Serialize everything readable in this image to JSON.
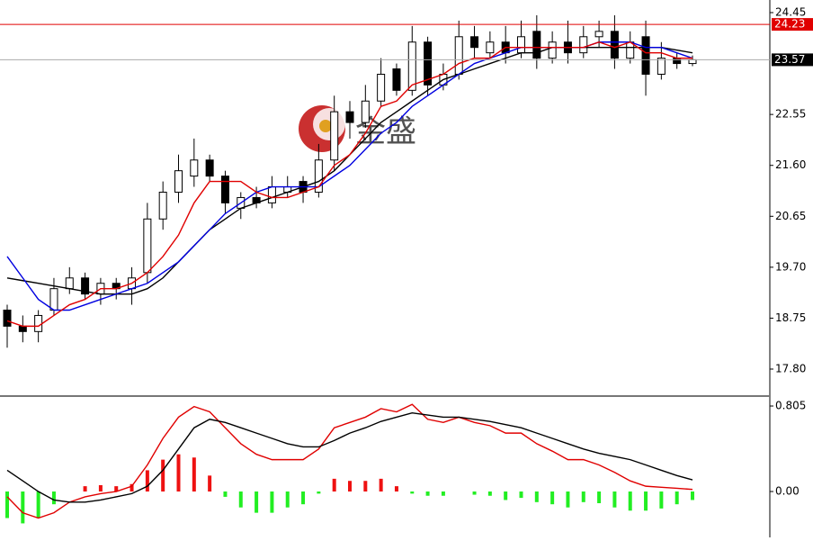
{
  "chart_data": [
    {
      "type": "candlestick",
      "watermark": "金盛",
      "open": [
        18.9,
        18.6,
        18.5,
        18.9,
        19.3,
        19.5,
        19.2,
        19.4,
        19.3,
        19.6,
        20.6,
        21.1,
        21.4,
        21.7,
        21.4,
        20.8,
        21.0,
        20.9,
        21.1,
        21.3,
        21.1,
        21.7,
        22.6,
        22.4,
        22.8,
        23.4,
        23.0,
        23.9,
        23.1,
        23.3,
        24.0,
        23.7,
        23.9,
        23.7,
        24.1,
        23.6,
        23.9,
        23.7,
        24.0,
        24.1,
        23.6,
        24.0,
        23.3,
        23.6,
        23.5
      ],
      "high": [
        19.0,
        18.8,
        18.9,
        19.5,
        19.7,
        19.6,
        19.5,
        19.5,
        19.7,
        20.9,
        21.3,
        21.8,
        22.1,
        21.8,
        21.5,
        21.1,
        21.2,
        21.4,
        21.4,
        21.4,
        22.0,
        22.9,
        22.8,
        23.1,
        23.6,
        23.5,
        24.2,
        24.0,
        23.5,
        24.3,
        24.2,
        24.1,
        24.2,
        24.3,
        24.4,
        24.1,
        24.3,
        24.2,
        24.3,
        24.4,
        24.1,
        24.3,
        23.9,
        23.7,
        23.65
      ],
      "low": [
        18.2,
        18.3,
        18.3,
        18.8,
        19.2,
        19.1,
        19.0,
        19.1,
        19.0,
        19.4,
        20.4,
        20.9,
        21.2,
        21.3,
        20.7,
        20.6,
        20.8,
        20.8,
        21.0,
        20.9,
        21.0,
        21.5,
        22.1,
        22.3,
        22.7,
        22.9,
        22.9,
        22.9,
        23.0,
        23.2,
        23.6,
        23.6,
        23.5,
        23.6,
        23.4,
        23.5,
        23.5,
        23.6,
        23.8,
        23.4,
        23.5,
        22.9,
        23.2,
        23.4,
        23.45
      ],
      "close": [
        18.6,
        18.5,
        18.8,
        19.3,
        19.5,
        19.2,
        19.4,
        19.3,
        19.5,
        20.6,
        21.1,
        21.5,
        21.7,
        21.4,
        20.9,
        21.0,
        20.9,
        21.2,
        21.2,
        21.1,
        21.7,
        22.6,
        22.4,
        22.8,
        23.3,
        23.0,
        23.9,
        23.1,
        23.3,
        24.0,
        23.8,
        23.9,
        23.7,
        24.0,
        23.6,
        23.9,
        23.7,
        24.0,
        24.1,
        23.6,
        23.9,
        23.3,
        23.6,
        23.5,
        23.57
      ],
      "up_color": "#ffffff",
      "down_color": "#000000",
      "series": [
        {
          "color": "#000000",
          "values": [
            19.5,
            19.45,
            19.4,
            19.35,
            19.3,
            19.25,
            19.2,
            19.2,
            19.2,
            19.3,
            19.5,
            19.8,
            20.1,
            20.4,
            20.6,
            20.8,
            20.9,
            21.0,
            21.1,
            21.2,
            21.3,
            21.5,
            21.8,
            22.1,
            22.4,
            22.6,
            22.8,
            23.0,
            23.2,
            23.3,
            23.4,
            23.5,
            23.6,
            23.7,
            23.7,
            23.8,
            23.8,
            23.8,
            23.8,
            23.8,
            23.8,
            23.8,
            23.8,
            23.75,
            23.7
          ]
        },
        {
          "color": "#0000e0",
          "values": [
            19.9,
            19.5,
            19.1,
            18.9,
            18.9,
            19.0,
            19.1,
            19.2,
            19.3,
            19.4,
            19.6,
            19.8,
            20.1,
            20.4,
            20.7,
            20.9,
            21.1,
            21.2,
            21.2,
            21.2,
            21.2,
            21.4,
            21.6,
            21.9,
            22.2,
            22.4,
            22.7,
            22.9,
            23.1,
            23.3,
            23.5,
            23.6,
            23.7,
            23.8,
            23.8,
            23.8,
            23.8,
            23.8,
            23.9,
            23.9,
            23.9,
            23.8,
            23.8,
            23.7,
            23.6
          ]
        },
        {
          "color": "#e00000",
          "values": [
            18.7,
            18.6,
            18.6,
            18.8,
            19.0,
            19.1,
            19.3,
            19.3,
            19.4,
            19.6,
            19.9,
            20.3,
            20.9,
            21.3,
            21.3,
            21.3,
            21.1,
            21.0,
            21.0,
            21.1,
            21.2,
            21.6,
            21.8,
            22.2,
            22.7,
            22.8,
            23.1,
            23.2,
            23.3,
            23.5,
            23.6,
            23.6,
            23.8,
            23.8,
            23.8,
            23.8,
            23.8,
            23.8,
            23.9,
            23.8,
            23.9,
            23.7,
            23.7,
            23.6,
            23.6
          ]
        }
      ],
      "price_lines": [
        {
          "value": 24.23,
          "color": "#e00000"
        },
        {
          "value": 23.57,
          "color": "#000000"
        }
      ],
      "ylim": [
        17.33,
        24.685
      ],
      "yticks": [
        24.45,
        22.55,
        {
          "value": 21.6,
          "label": "21.60"
        },
        20.65,
        {
          "value": 19.7,
          "label": "19.70"
        },
        18.75,
        {
          "value": 17.8,
          "label": "17.80"
        }
      ]
    },
    {
      "type": "macd",
      "series": [
        {
          "color": "#e00000",
          "values": [
            -0.05,
            -0.2,
            -0.25,
            -0.2,
            -0.1,
            -0.05,
            -0.02,
            0.0,
            0.05,
            0.25,
            0.5,
            0.7,
            0.8,
            0.75,
            0.6,
            0.45,
            0.35,
            0.3,
            0.3,
            0.3,
            0.4,
            0.6,
            0.65,
            0.7,
            0.78,
            0.75,
            0.82,
            0.68,
            0.65,
            0.7,
            0.65,
            0.62,
            0.55,
            0.55,
            0.45,
            0.38,
            0.3,
            0.3,
            0.25,
            0.18,
            0.1,
            0.05,
            0.04,
            0.03,
            0.02
          ]
        },
        {
          "color": "#000000",
          "values": [
            0.2,
            0.1,
            0.0,
            -0.08,
            -0.1,
            -0.1,
            -0.08,
            -0.05,
            -0.02,
            0.05,
            0.2,
            0.4,
            0.6,
            0.68,
            0.65,
            0.6,
            0.55,
            0.5,
            0.45,
            0.42,
            0.42,
            0.48,
            0.55,
            0.6,
            0.66,
            0.7,
            0.74,
            0.72,
            0.7,
            0.7,
            0.68,
            0.66,
            0.63,
            0.6,
            0.55,
            0.5,
            0.45,
            0.4,
            0.36,
            0.33,
            0.3,
            0.25,
            0.2,
            0.15,
            0.11
          ]
        }
      ],
      "histogram": [
        -0.25,
        -0.3,
        -0.25,
        -0.12,
        0.0,
        0.05,
        0.06,
        0.05,
        0.07,
        0.2,
        0.3,
        0.35,
        0.32,
        0.15,
        -0.05,
        -0.15,
        -0.2,
        -0.2,
        -0.15,
        -0.12,
        -0.02,
        0.12,
        0.1,
        0.1,
        0.12,
        0.05,
        -0.02,
        -0.04,
        -0.04,
        0.0,
        -0.03,
        -0.04,
        -0.08,
        -0.06,
        -0.1,
        -0.12,
        -0.15,
        -0.1,
        -0.11,
        -0.15,
        -0.18,
        -0.18,
        -0.16,
        -0.12,
        -0.08
      ],
      "positive_color": "#ee1111",
      "negative_color": "#22ee22",
      "ylim": [
        -0.432,
        0.89
      ],
      "yticks": [
        0.805,
        {
          "value": 0,
          "label": "0.00"
        }
      ]
    }
  ]
}
